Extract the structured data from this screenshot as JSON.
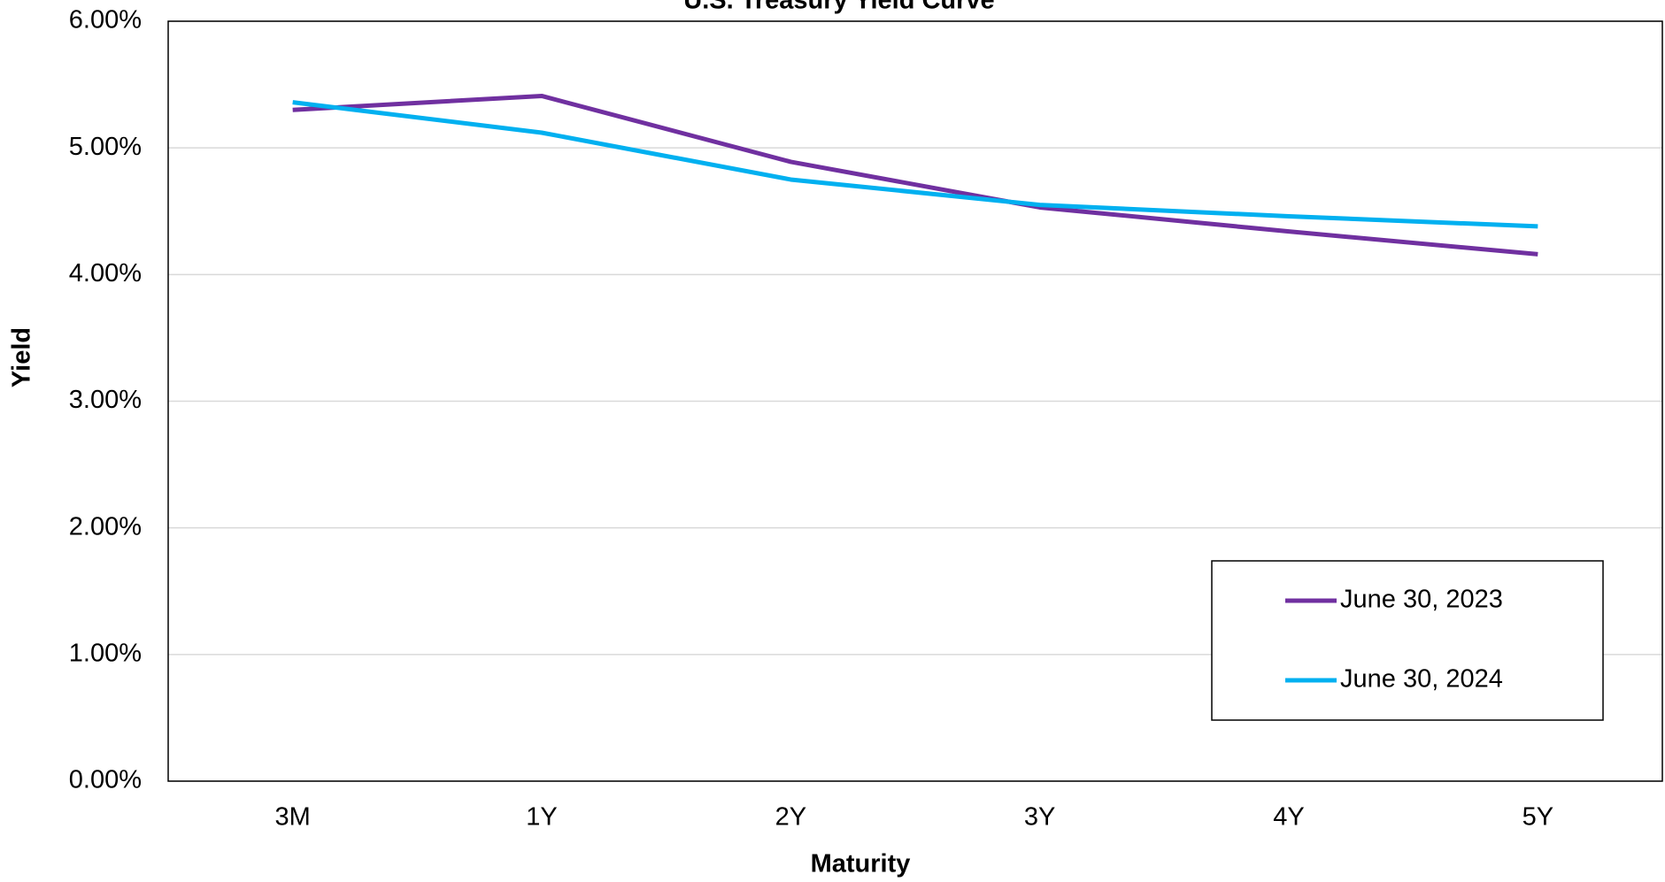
{
  "chart_data": {
    "type": "line",
    "title": "U.S. Treasury Yield Curve",
    "x_label": "Maturity",
    "y_label": "Yield",
    "categories": [
      "3M",
      "1Y",
      "2Y",
      "3Y",
      "4Y",
      "5Y"
    ],
    "series": [
      {
        "name": "June 30, 2023",
        "color": "#7030a0",
        "values": [
          5.3,
          5.41,
          4.89,
          4.53,
          4.34,
          4.16
        ]
      },
      {
        "name": "June 30, 2024",
        "color": "#00b0f0",
        "values": [
          5.36,
          5.12,
          4.75,
          4.55,
          4.46,
          4.38
        ]
      }
    ],
    "ylim": [
      0,
      6
    ],
    "yticks": [
      {
        "value": 0,
        "label": "0.00%"
      },
      {
        "value": 1,
        "label": "1.00%"
      },
      {
        "value": 2,
        "label": "2.00%"
      },
      {
        "value": 3,
        "label": "3.00%"
      },
      {
        "value": 4,
        "label": "4.00%"
      },
      {
        "value": 5,
        "label": "5.00%"
      },
      {
        "value": 6,
        "label": "6.00%"
      }
    ],
    "grid": true,
    "legend": "lower right"
  }
}
